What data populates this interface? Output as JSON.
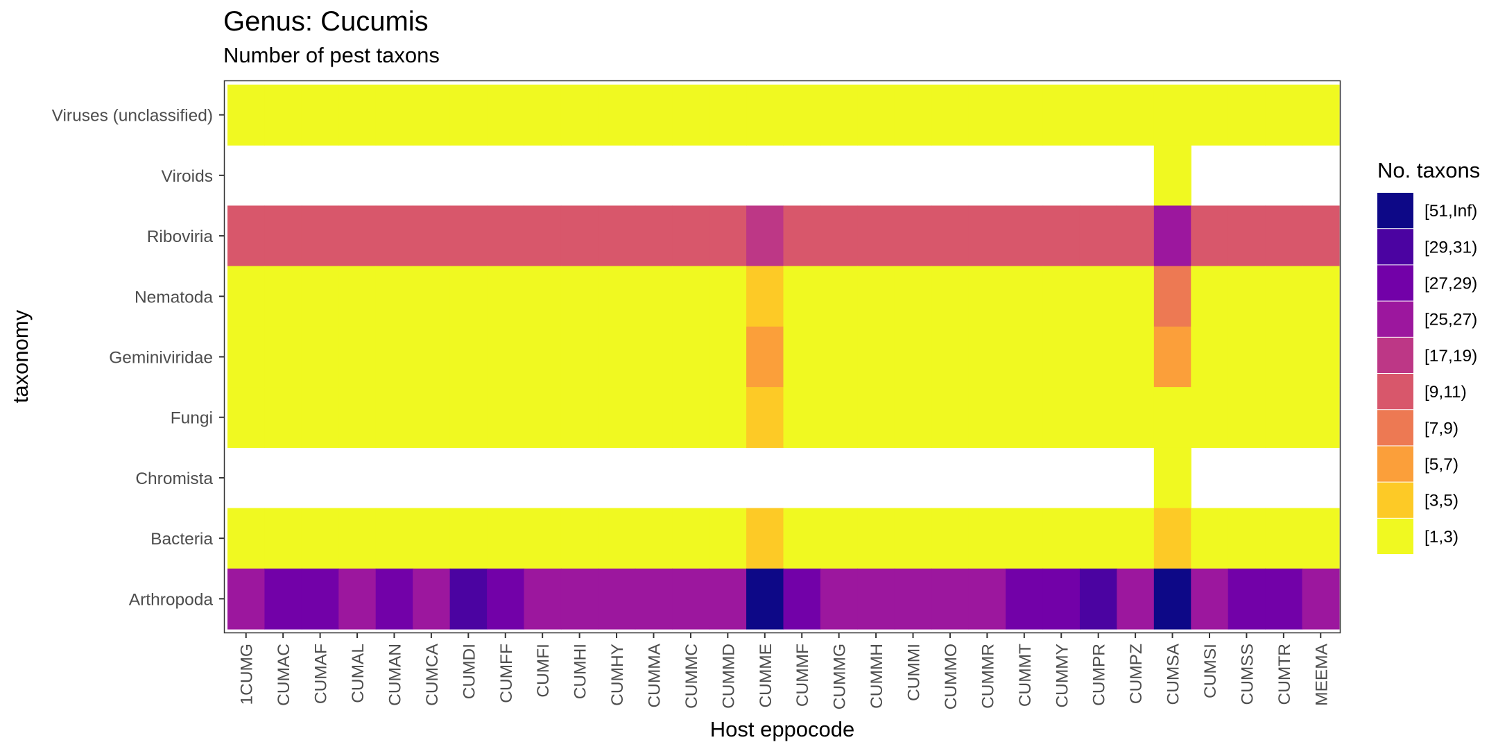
{
  "chart_data": {
    "type": "heatmap",
    "title": "Genus: Cucumis",
    "subtitle": "Number of pest taxons",
    "xlabel": "Host eppocode",
    "ylabel": "taxonomy",
    "x": [
      "1CUMG",
      "CUMAC",
      "CUMAF",
      "CUMAL",
      "CUMAN",
      "CUMCA",
      "CUMDI",
      "CUMFF",
      "CUMFI",
      "CUMHI",
      "CUMHY",
      "CUMMA",
      "CUMMC",
      "CUMMD",
      "CUMME",
      "CUMMF",
      "CUMMG",
      "CUMMH",
      "CUMMI",
      "CUMMO",
      "CUMMR",
      "CUMMT",
      "CUMMY",
      "CUMPR",
      "CUMPZ",
      "CUMSA",
      "CUMSI",
      "CUMSS",
      "CUMTR",
      "MEEMA"
    ],
    "y": [
      "Viruses (unclassified)",
      "Viroids",
      "Riboviria",
      "Nematoda",
      "Geminiviridae",
      "Fungi",
      "Chromista",
      "Bacteria",
      "Arthropoda"
    ],
    "legend": {
      "title": "No. taxons",
      "position": "right",
      "bins": [
        {
          "label": "[51,Inf)",
          "color": "#0d0887"
        },
        {
          "label": "[29,31)",
          "color": "#4b03a1"
        },
        {
          "label": "[27,29)",
          "color": "#7201a8"
        },
        {
          "label": "[25,27)",
          "color": "#9c179e"
        },
        {
          "label": "[17,19)",
          "color": "#bd3786"
        },
        {
          "label": "[9,11)",
          "color": "#d8576b"
        },
        {
          "label": "[7,9)",
          "color": "#ed7953"
        },
        {
          "label": "[5,7)",
          "color": "#fb9f3a"
        },
        {
          "label": "[3,5)",
          "color": "#fdca26"
        },
        {
          "label": "[1,3)",
          "color": "#f0f921"
        }
      ]
    },
    "cells": [
      [
        "[1,3)",
        "[1,3)",
        "[1,3)",
        "[1,3)",
        "[1,3)",
        "[1,3)",
        "[1,3)",
        "[1,3)",
        "[1,3)",
        "[1,3)",
        "[1,3)",
        "[1,3)",
        "[1,3)",
        "[1,3)",
        "[1,3)",
        "[1,3)",
        "[1,3)",
        "[1,3)",
        "[1,3)",
        "[1,3)",
        "[1,3)",
        "[1,3)",
        "[1,3)",
        "[1,3)",
        "[1,3)",
        "[1,3)",
        "[1,3)",
        "[1,3)",
        "[1,3)",
        "[1,3)"
      ],
      [
        null,
        null,
        null,
        null,
        null,
        null,
        null,
        null,
        null,
        null,
        null,
        null,
        null,
        null,
        null,
        null,
        null,
        null,
        null,
        null,
        null,
        null,
        null,
        null,
        null,
        "[1,3)",
        null,
        null,
        null,
        null
      ],
      [
        "[9,11)",
        "[9,11)",
        "[9,11)",
        "[9,11)",
        "[9,11)",
        "[9,11)",
        "[9,11)",
        "[9,11)",
        "[9,11)",
        "[9,11)",
        "[9,11)",
        "[9,11)",
        "[9,11)",
        "[9,11)",
        "[17,19)",
        "[9,11)",
        "[9,11)",
        "[9,11)",
        "[9,11)",
        "[9,11)",
        "[9,11)",
        "[9,11)",
        "[9,11)",
        "[9,11)",
        "[9,11)",
        "[25,27)",
        "[9,11)",
        "[9,11)",
        "[9,11)",
        "[9,11)"
      ],
      [
        "[1,3)",
        "[1,3)",
        "[1,3)",
        "[1,3)",
        "[1,3)",
        "[1,3)",
        "[1,3)",
        "[1,3)",
        "[1,3)",
        "[1,3)",
        "[1,3)",
        "[1,3)",
        "[1,3)",
        "[1,3)",
        "[3,5)",
        "[1,3)",
        "[1,3)",
        "[1,3)",
        "[1,3)",
        "[1,3)",
        "[1,3)",
        "[1,3)",
        "[1,3)",
        "[1,3)",
        "[1,3)",
        "[7,9)",
        "[1,3)",
        "[1,3)",
        "[1,3)",
        "[1,3)"
      ],
      [
        "[1,3)",
        "[1,3)",
        "[1,3)",
        "[1,3)",
        "[1,3)",
        "[1,3)",
        "[1,3)",
        "[1,3)",
        "[1,3)",
        "[1,3)",
        "[1,3)",
        "[1,3)",
        "[1,3)",
        "[1,3)",
        "[5,7)",
        "[1,3)",
        "[1,3)",
        "[1,3)",
        "[1,3)",
        "[1,3)",
        "[1,3)",
        "[1,3)",
        "[1,3)",
        "[1,3)",
        "[1,3)",
        "[5,7)",
        "[1,3)",
        "[1,3)",
        "[1,3)",
        "[1,3)"
      ],
      [
        "[1,3)",
        "[1,3)",
        "[1,3)",
        "[1,3)",
        "[1,3)",
        "[1,3)",
        "[1,3)",
        "[1,3)",
        "[1,3)",
        "[1,3)",
        "[1,3)",
        "[1,3)",
        "[1,3)",
        "[1,3)",
        "[3,5)",
        "[1,3)",
        "[1,3)",
        "[1,3)",
        "[1,3)",
        "[1,3)",
        "[1,3)",
        "[1,3)",
        "[1,3)",
        "[1,3)",
        "[1,3)",
        "[1,3)",
        "[1,3)",
        "[1,3)",
        "[1,3)",
        "[1,3)"
      ],
      [
        null,
        null,
        null,
        null,
        null,
        null,
        null,
        null,
        null,
        null,
        null,
        null,
        null,
        null,
        null,
        null,
        null,
        null,
        null,
        null,
        null,
        null,
        null,
        null,
        null,
        "[1,3)",
        null,
        null,
        null,
        null
      ],
      [
        "[1,3)",
        "[1,3)",
        "[1,3)",
        "[1,3)",
        "[1,3)",
        "[1,3)",
        "[1,3)",
        "[1,3)",
        "[1,3)",
        "[1,3)",
        "[1,3)",
        "[1,3)",
        "[1,3)",
        "[1,3)",
        "[3,5)",
        "[1,3)",
        "[1,3)",
        "[1,3)",
        "[1,3)",
        "[1,3)",
        "[1,3)",
        "[1,3)",
        "[1,3)",
        "[1,3)",
        "[1,3)",
        "[3,5)",
        "[1,3)",
        "[1,3)",
        "[1,3)",
        "[1,3)"
      ],
      [
        "[25,27)",
        "[27,29)",
        "[27,29)",
        "[25,27)",
        "[27,29)",
        "[25,27)",
        "[29,31)",
        "[27,29)",
        "[25,27)",
        "[25,27)",
        "[25,27)",
        "[25,27)",
        "[25,27)",
        "[25,27)",
        "[51,Inf)",
        "[27,29)",
        "[25,27)",
        "[25,27)",
        "[25,27)",
        "[25,27)",
        "[25,27)",
        "[27,29)",
        "[27,29)",
        "[29,31)",
        "[25,27)",
        "[51,Inf)",
        "[25,27)",
        "[27,29)",
        "[27,29)",
        "[25,27)"
      ]
    ]
  }
}
